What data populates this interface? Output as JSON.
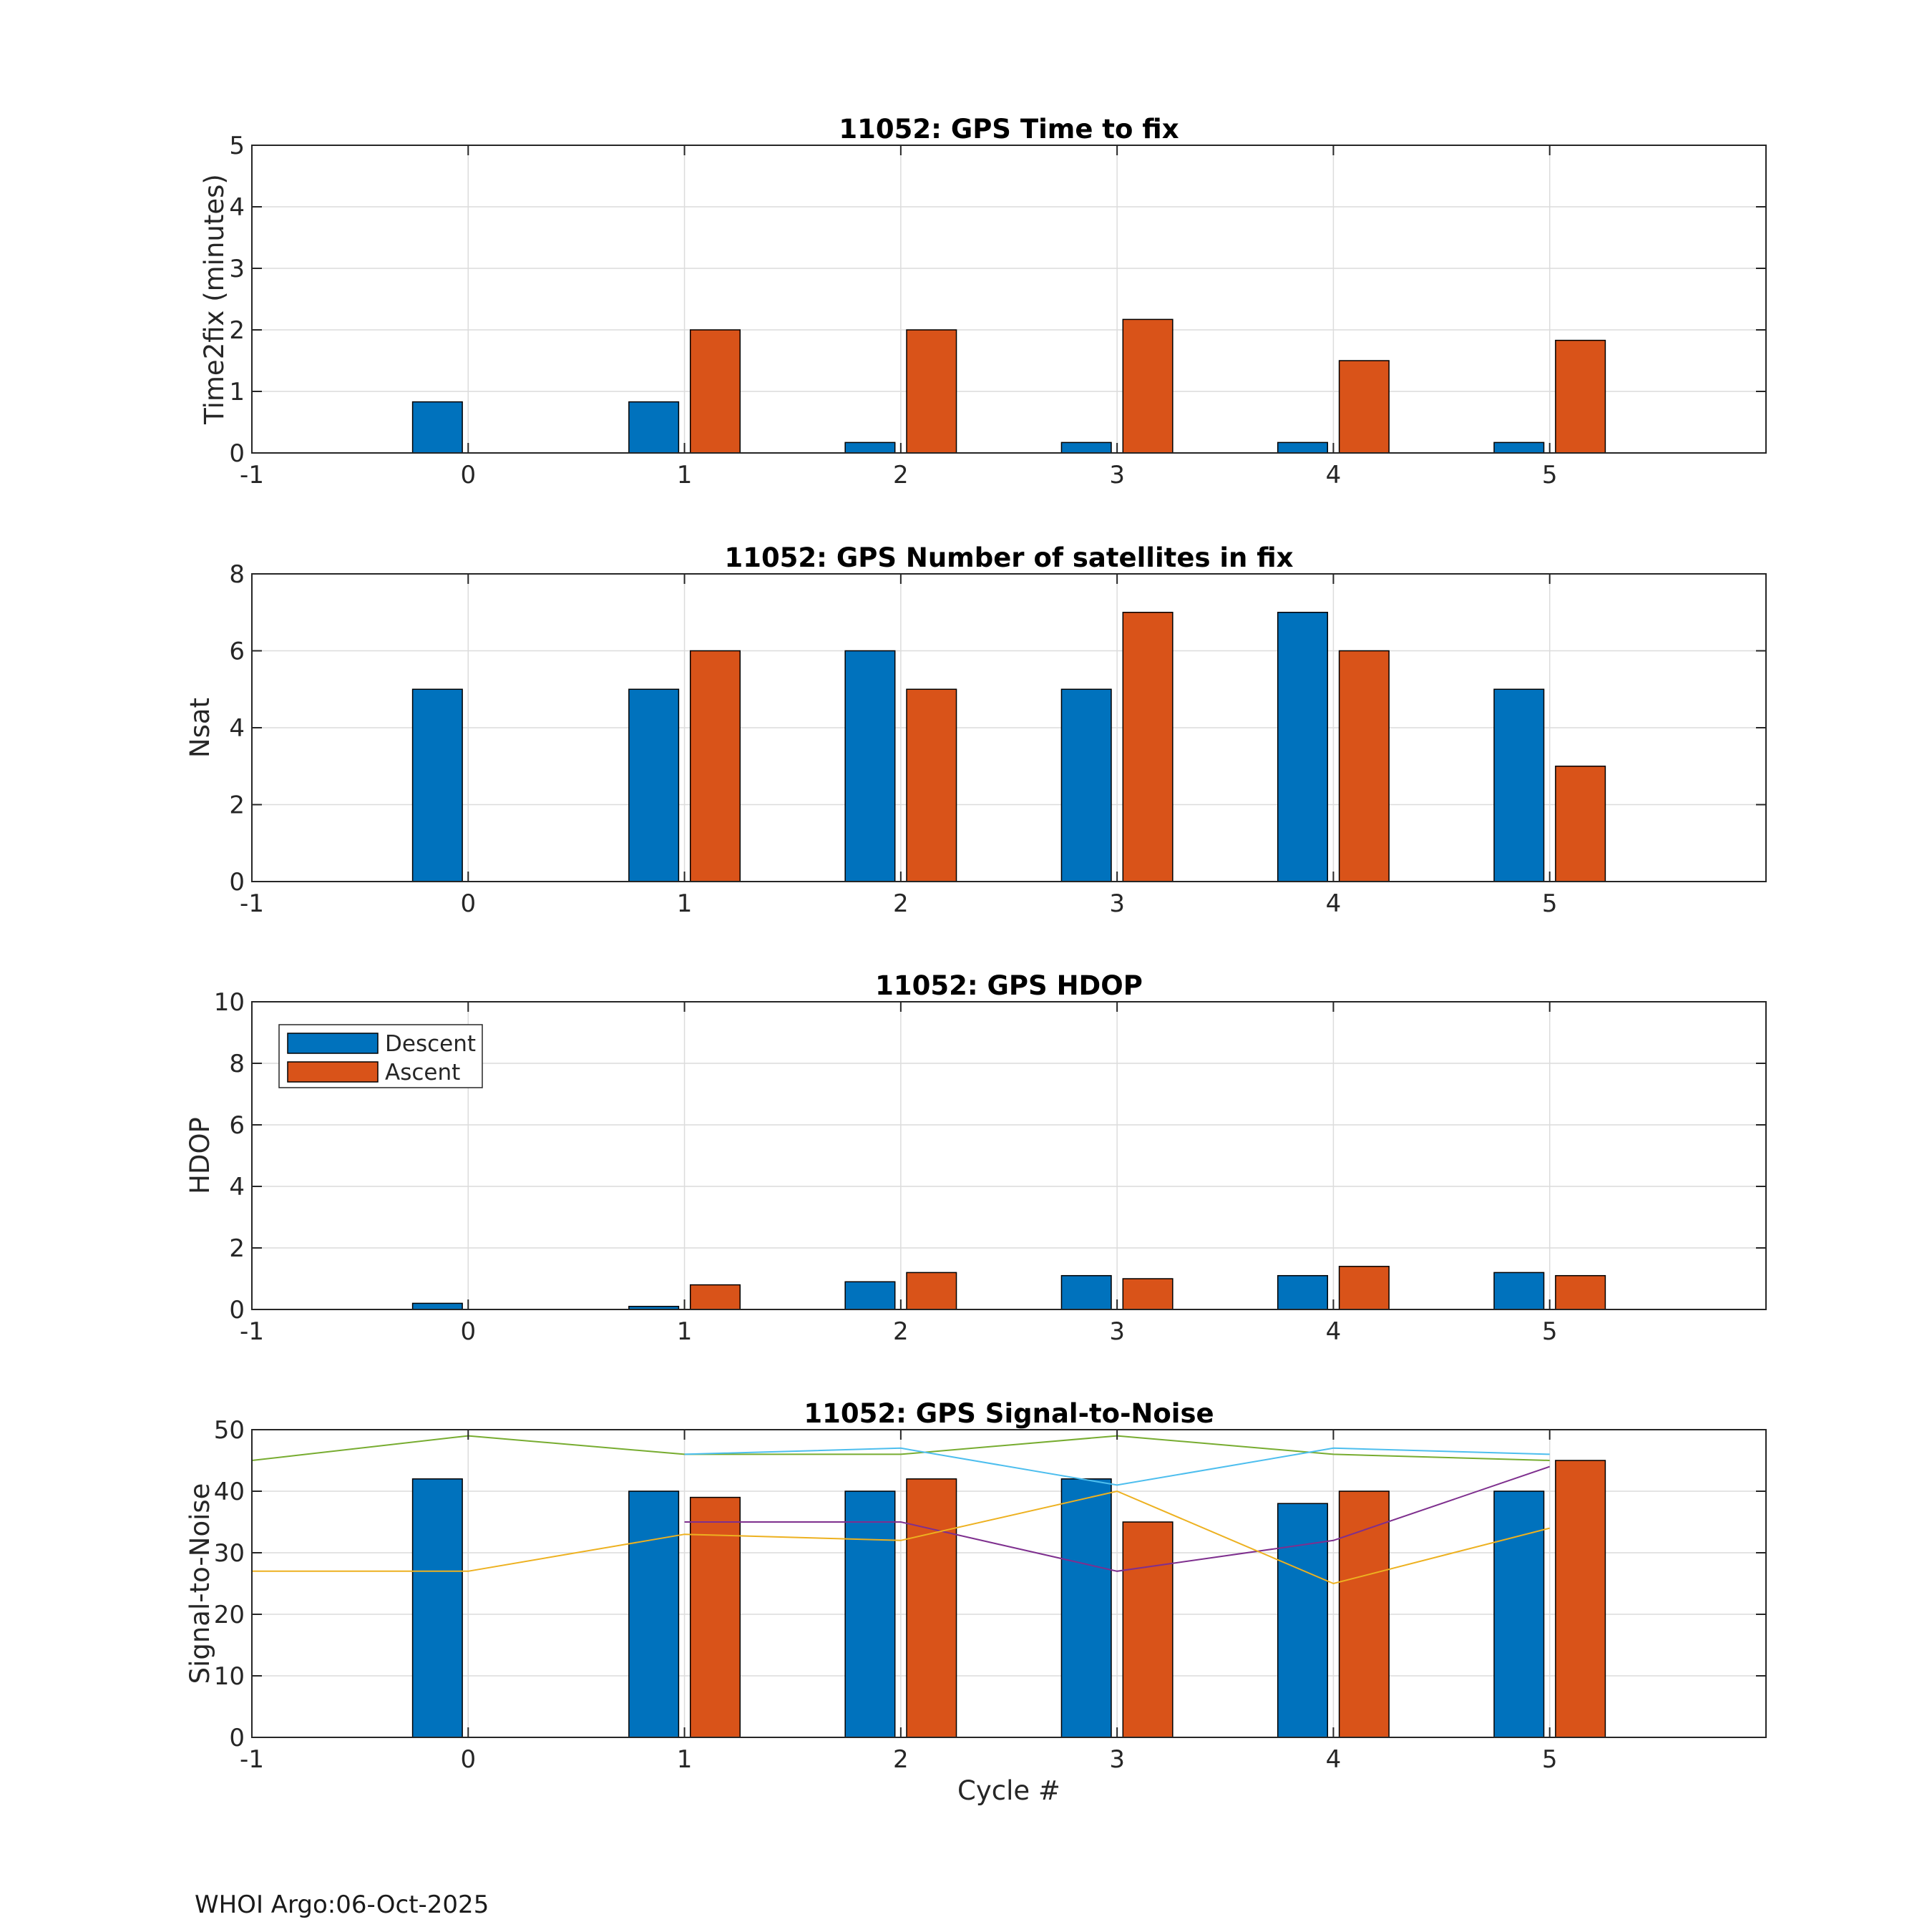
{
  "footer": "WHOI Argo:06-Oct-2025",
  "colors": {
    "descent": "#0072BD",
    "ascent": "#D95319"
  },
  "chart_data": [
    {
      "type": "bar",
      "title": "11052: GPS Time to fix",
      "xlabel": "",
      "ylabel": "Time2fix (minutes)",
      "xlim": [
        -1,
        6
      ],
      "ylim": [
        0,
        5
      ],
      "xticks": [
        "-1",
        "0",
        "1",
        "2",
        "3",
        "4",
        "5"
      ],
      "yticks": [
        "0",
        "1",
        "2",
        "3",
        "4",
        "5"
      ],
      "categories": [
        0,
        1,
        2,
        3,
        4,
        5
      ],
      "series": [
        {
          "name": "Descent",
          "values": [
            0.83,
            0.83,
            0.17,
            0.17,
            0.17,
            0.17
          ]
        },
        {
          "name": "Ascent",
          "values": [
            0,
            2.0,
            2.0,
            2.17,
            1.5,
            1.83
          ]
        }
      ],
      "grid": true
    },
    {
      "type": "bar",
      "title": "11052: GPS Number of satellites in fix",
      "xlabel": "",
      "ylabel": "Nsat",
      "xlim": [
        -1,
        6
      ],
      "ylim": [
        0,
        8
      ],
      "xticks": [
        "-1",
        "0",
        "1",
        "2",
        "3",
        "4",
        "5"
      ],
      "yticks": [
        "0",
        "2",
        "4",
        "6",
        "8"
      ],
      "categories": [
        0,
        1,
        2,
        3,
        4,
        5
      ],
      "series": [
        {
          "name": "Descent",
          "values": [
            5,
            5,
            6,
            5,
            7,
            5
          ]
        },
        {
          "name": "Ascent",
          "values": [
            0,
            6,
            5,
            7,
            6,
            3
          ]
        }
      ],
      "grid": true
    },
    {
      "type": "bar",
      "title": "11052: GPS HDOP",
      "xlabel": "",
      "ylabel": "HDOP",
      "xlim": [
        -1,
        6
      ],
      "ylim": [
        0,
        10
      ],
      "xticks": [
        "-1",
        "0",
        "1",
        "2",
        "3",
        "4",
        "5"
      ],
      "yticks": [
        "0",
        "2",
        "4",
        "6",
        "8",
        "10"
      ],
      "categories": [
        0,
        1,
        2,
        3,
        4,
        5
      ],
      "series": [
        {
          "name": "Descent",
          "values": [
            0.2,
            0.1,
            0.9,
            1.1,
            1.1,
            1.2
          ]
        },
        {
          "name": "Ascent",
          "values": [
            0,
            0.8,
            1.2,
            1.0,
            1.4,
            1.1
          ]
        }
      ],
      "legend": {
        "placement": "top-left",
        "entries": [
          "Descent",
          "Ascent"
        ]
      },
      "grid": true
    },
    {
      "type": "bar",
      "title": "11052: GPS Signal-to-Noise",
      "xlabel": "Cycle #",
      "ylabel": "Signal-to-Noise",
      "xlim": [
        -1,
        6
      ],
      "ylim": [
        0,
        50
      ],
      "xticks": [
        "-1",
        "0",
        "1",
        "2",
        "3",
        "4",
        "5"
      ],
      "yticks": [
        "0",
        "10",
        "20",
        "30",
        "40",
        "50"
      ],
      "categories": [
        0,
        1,
        2,
        3,
        4,
        5
      ],
      "series": [
        {
          "name": "Descent",
          "values": [
            42,
            40,
            40,
            42,
            38,
            40
          ]
        },
        {
          "name": "Ascent",
          "values": [
            0,
            39,
            42,
            35,
            40,
            45
          ]
        }
      ],
      "lines": [
        {
          "color": "#77AC30",
          "x": [
            -1,
            0,
            1,
            2,
            3,
            4,
            5
          ],
          "y": [
            45,
            49,
            46,
            46,
            49,
            46,
            45
          ]
        },
        {
          "color": "#4DBEEE",
          "x": [
            1,
            2,
            3,
            4,
            5
          ],
          "y": [
            46,
            47,
            41,
            47,
            46
          ]
        },
        {
          "color": "#7E2F8E",
          "x": [
            1,
            2,
            3,
            4,
            5
          ],
          "y": [
            35,
            35,
            27,
            32,
            44
          ]
        },
        {
          "color": "#EDB120",
          "x": [
            -1,
            0,
            1,
            2,
            3,
            4,
            5
          ],
          "y": [
            27,
            27,
            33,
            32,
            40,
            25,
            34
          ]
        }
      ],
      "grid": true
    }
  ]
}
